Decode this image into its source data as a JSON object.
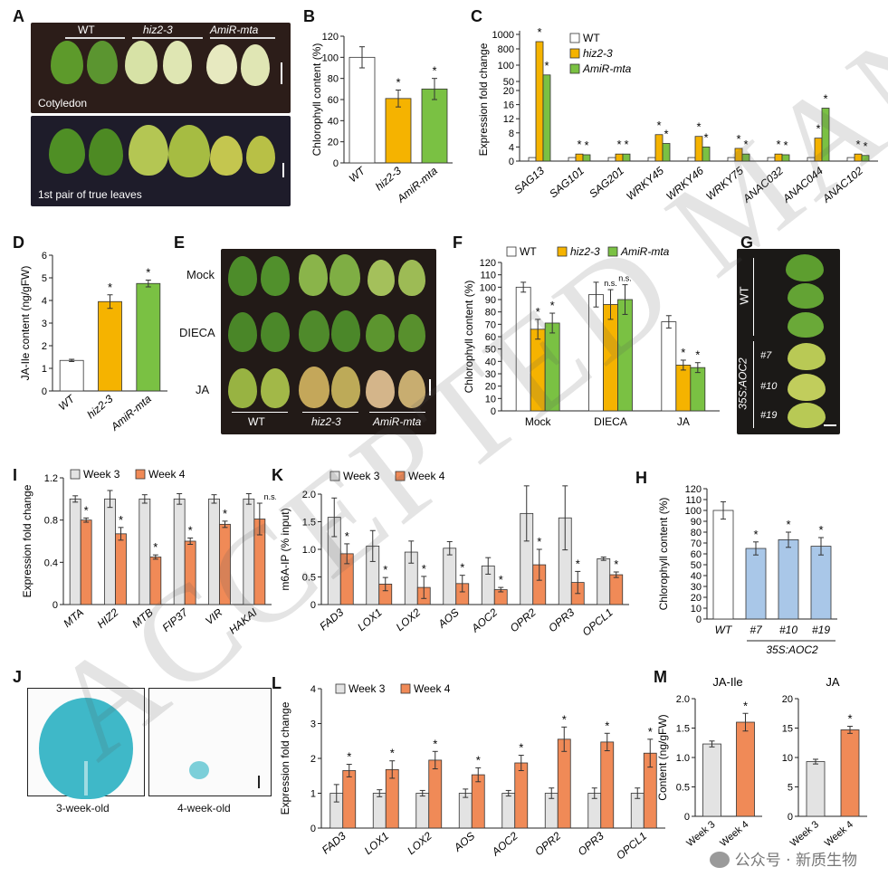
{
  "colors": {
    "wt": "#ffffff",
    "hiz": "#f5b300",
    "amir": "#7ac143",
    "week3": "#e3e3e3",
    "week4": "#f08a57",
    "aoc2": "#a9c7e8",
    "leafDark": "#3e7d1e",
    "leafPale": "#cfdd8a",
    "photoBg": "#2a1c18",
    "gusBlue": "#39b7c5"
  },
  "panel_labels": {
    "A": "A",
    "B": "B",
    "C": "C",
    "D": "D",
    "E": "E",
    "F": "F",
    "G": "G",
    "H": "H",
    "I": "I",
    "J": "J",
    "K": "K",
    "L": "L",
    "M": "M"
  },
  "panelA": {
    "wt": "WT",
    "hiz": "hiz2-3",
    "amir": "AmiR-mta",
    "cotyledon": "Cotyledon",
    "true_leaves": "1st pair of true leaves"
  },
  "panelE": {
    "rows": [
      "Mock",
      "DIECA",
      "JA"
    ],
    "cols": [
      "WT",
      "hiz2-3",
      "AmiR-mta"
    ]
  },
  "panelG": {
    "wt": "WT",
    "line": "35S:AOC2",
    "lines": [
      "#7",
      "#10",
      "#19"
    ]
  },
  "panelJ": {
    "left": "3-week-old",
    "right": "4-week-old"
  },
  "credit": "公众号 · 新质生物",
  "watermark": "ACCEPTED MANUSCRIPT",
  "chart_data": [
    {
      "id": "B",
      "type": "bar",
      "categories": [
        "WT",
        "hiz2-3",
        "AmiR-mta"
      ],
      "values": [
        100,
        61,
        70
      ],
      "errors": [
        10,
        8,
        10
      ],
      "sig": [
        "",
        "*",
        "*"
      ],
      "ylabel": "Chlorophyll content (%)",
      "ylim": [
        0,
        120
      ],
      "yticks": [
        0,
        20,
        40,
        60,
        80,
        100,
        120
      ]
    },
    {
      "id": "C",
      "type": "bar",
      "categories": [
        "SAG13",
        "SAG101",
        "SAG201",
        "WRKY45",
        "WRKY46",
        "WRKY75",
        "ANAC032",
        "ANAC044",
        "ANAC102"
      ],
      "series": [
        {
          "name": "WT",
          "values": [
            1,
            1,
            1,
            1,
            1,
            1,
            1,
            1,
            1
          ]
        },
        {
          "name": "hiz2-3",
          "values": [
            900,
            2,
            2,
            7.5,
            7,
            3.6,
            2,
            6.5,
            2
          ]
        },
        {
          "name": "AmiR-mta",
          "values": [
            70,
            1.8,
            2,
            5,
            4,
            2,
            1.8,
            15,
            1.6
          ]
        }
      ],
      "sig": [
        [
          "",
          "*",
          "*"
        ],
        [
          "",
          "*",
          "*"
        ],
        [
          "",
          "*",
          "*"
        ],
        [
          "",
          "*",
          "*"
        ],
        [
          "",
          "*",
          "*"
        ],
        [
          "",
          "*",
          "*"
        ],
        [
          "",
          "*",
          "*"
        ],
        [
          "",
          "*",
          "*"
        ],
        [
          "",
          "*",
          "*"
        ]
      ],
      "ylabel": "Expression fold change",
      "yticks_upper": [
        "1000",
        "800",
        "100",
        "50"
      ],
      "yticks_lower": [
        0,
        4,
        8,
        12,
        16,
        20
      ]
    },
    {
      "id": "D",
      "type": "bar",
      "categories": [
        "WT",
        "hiz2-3",
        "AmiR-mta"
      ],
      "values": [
        1.35,
        3.95,
        4.75
      ],
      "errors": [
        0.05,
        0.3,
        0.15
      ],
      "sig": [
        "",
        "*",
        "*"
      ],
      "ylabel": "JA-Ile content (ng/gFW)",
      "ylim": [
        0,
        6
      ],
      "yticks": [
        0,
        1,
        2,
        3,
        4,
        5,
        6
      ]
    },
    {
      "id": "F",
      "type": "bar",
      "categories": [
        "Mock",
        "DIECA",
        "JA"
      ],
      "series": [
        {
          "name": "WT",
          "values": [
            100,
            94,
            72
          ],
          "errors": [
            4,
            10,
            5
          ]
        },
        {
          "name": "hiz2-3",
          "values": [
            66,
            86,
            37
          ],
          "errors": [
            8,
            12,
            4
          ]
        },
        {
          "name": "AmiR-mta",
          "values": [
            71,
            90,
            35
          ],
          "errors": [
            8,
            12,
            4
          ]
        }
      ],
      "sig": [
        [
          "",
          "*",
          "*"
        ],
        [
          "",
          "n.s.",
          "n.s."
        ],
        [
          "",
          "*",
          "*"
        ]
      ],
      "ylabel": "Chlorophyll content (%)",
      "ylim": [
        0,
        120
      ],
      "yticks": [
        0,
        10,
        20,
        30,
        40,
        50,
        60,
        70,
        80,
        90,
        100,
        110,
        120
      ]
    },
    {
      "id": "H",
      "type": "bar",
      "categories": [
        "WT",
        "#7",
        "#10",
        "#19"
      ],
      "values": [
        100,
        65,
        73,
        67
      ],
      "errors": [
        8,
        6,
        7,
        8
      ],
      "sig": [
        "",
        "*",
        "*",
        "*"
      ],
      "ylabel": "Chlorophyll content (%)",
      "xgroup": "35S:AOC2",
      "ylim": [
        0,
        120
      ],
      "yticks": [
        0,
        10,
        20,
        30,
        40,
        50,
        60,
        70,
        80,
        90,
        100,
        110,
        120
      ]
    },
    {
      "id": "I",
      "type": "bar",
      "categories": [
        "MTA",
        "HIZ2",
        "MTB",
        "FIP37",
        "VIR",
        "HAKAI"
      ],
      "series": [
        {
          "name": "Week 3",
          "values": [
            1,
            1,
            1,
            1,
            1,
            1
          ],
          "errors": [
            0.03,
            0.08,
            0.04,
            0.05,
            0.04,
            0.05
          ]
        },
        {
          "name": "Week 4",
          "values": [
            0.8,
            0.67,
            0.45,
            0.6,
            0.76,
            0.81
          ],
          "errors": [
            0.02,
            0.06,
            0.02,
            0.03,
            0.03,
            0.15
          ]
        }
      ],
      "sig": [
        "*",
        "*",
        "*",
        "*",
        "*",
        "n.s."
      ],
      "ylabel": "Expression fold change",
      "ylim": [
        0,
        1.2
      ],
      "yticks": [
        "0",
        "0.4",
        "0.8",
        "1.2"
      ]
    },
    {
      "id": "K",
      "type": "bar",
      "categories": [
        "FAD3",
        "LOX1",
        "LOX2",
        "AOS",
        "AOC2",
        "OPR2",
        "OPR3",
        "OPCL1"
      ],
      "series": [
        {
          "name": "Week 3",
          "values": [
            1.58,
            1.06,
            0.95,
            1.02,
            0.7,
            1.65,
            1.57,
            0.83
          ],
          "errors": [
            0.35,
            0.28,
            0.2,
            0.12,
            0.15,
            0.5,
            0.58,
            0.03
          ]
        },
        {
          "name": "Week 4",
          "values": [
            0.92,
            0.37,
            0.31,
            0.38,
            0.27,
            0.72,
            0.4,
            0.54
          ],
          "errors": [
            0.18,
            0.12,
            0.2,
            0.15,
            0.04,
            0.28,
            0.2,
            0.05
          ]
        }
      ],
      "sig": [
        "*",
        "*",
        "*",
        "*",
        "*",
        "*",
        "*",
        "*"
      ],
      "ylabel": "m6A-IP (% input)",
      "ylim": [
        0,
        2
      ],
      "yticks": [
        "0",
        "0.5",
        "1.0",
        "1.5",
        "2.0"
      ]
    },
    {
      "id": "L",
      "type": "bar",
      "categories": [
        "FAD3",
        "LOX1",
        "LOX2",
        "AOS",
        "AOC2",
        "OPR2",
        "OPR3",
        "OPCL1"
      ],
      "series": [
        {
          "name": "Week 3",
          "values": [
            1,
            1,
            1,
            1,
            1,
            1,
            1,
            1
          ],
          "errors": [
            0.25,
            0.1,
            0.08,
            0.12,
            0.08,
            0.15,
            0.15,
            0.15
          ]
        },
        {
          "name": "Week 4",
          "values": [
            1.65,
            1.68,
            1.95,
            1.53,
            1.87,
            2.55,
            2.47,
            2.15
          ],
          "errors": [
            0.18,
            0.25,
            0.25,
            0.2,
            0.22,
            0.35,
            0.25,
            0.4
          ]
        }
      ],
      "sig": [
        "*",
        "*",
        "*",
        "*",
        "*",
        "*",
        "*",
        "*"
      ],
      "ylabel": "Expression fold change",
      "ylim": [
        0,
        4
      ],
      "yticks": [
        0,
        1,
        2,
        3,
        4
      ]
    },
    {
      "id": "M1",
      "type": "bar",
      "title": "JA-Ile",
      "categories": [
        "Week 3",
        "Week 4"
      ],
      "values": [
        1.23,
        1.6
      ],
      "errors": [
        0.05,
        0.15
      ],
      "sig": [
        "",
        "*"
      ],
      "ylabel": "Content (ng/gFW)",
      "ylim": [
        0,
        2
      ],
      "yticks": [
        "0",
        "0.5",
        "1.0",
        "1.5",
        "2.0"
      ]
    },
    {
      "id": "M2",
      "type": "bar",
      "title": "JA",
      "categories": [
        "Week 3",
        "Week 4"
      ],
      "values": [
        9.3,
        14.7
      ],
      "errors": [
        0.4,
        0.6
      ],
      "sig": [
        "",
        "*"
      ],
      "ylim": [
        0,
        20
      ],
      "yticks": [
        0,
        5,
        10,
        15,
        20
      ]
    }
  ]
}
